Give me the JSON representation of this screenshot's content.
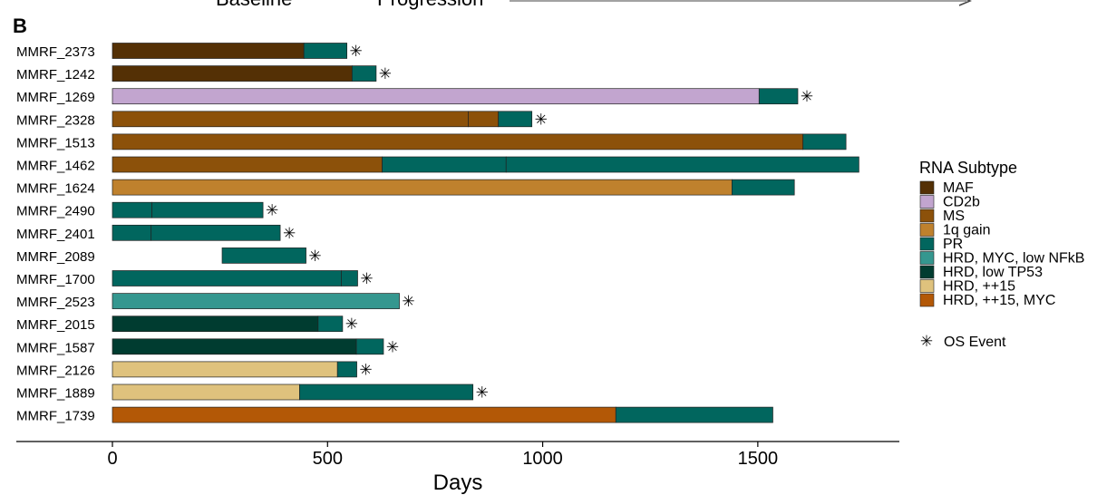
{
  "panel_label": "B",
  "top_labels": [
    "Baseline",
    "Progression"
  ],
  "chart_data": {
    "type": "bar",
    "orientation": "horizontal",
    "stacked": true,
    "xlabel": "Days",
    "ylabel": "",
    "xlim": [
      -220,
      1830
    ],
    "xticks": [
      0,
      500,
      1000,
      1500
    ],
    "grid": false,
    "legend": {
      "title": "RNA Subtype",
      "placement": "right",
      "entries": [
        {
          "name": "MAF",
          "color": "#543005"
        },
        {
          "name": "CD2b",
          "color": "#C2A5CF"
        },
        {
          "name": "MS",
          "color": "#8C510A"
        },
        {
          "name": "1q gain",
          "color": "#BF812D"
        },
        {
          "name": "PR",
          "color": "#01665E"
        },
        {
          "name": "HRD, MYC, low NFkB",
          "color": "#35978F"
        },
        {
          "name": "HRD, low TP53",
          "color": "#003C30"
        },
        {
          "name": "HRD, ++15",
          "color": "#DFC27D"
        },
        {
          "name": "HRD, ++15, MYC",
          "color": "#B35806"
        }
      ],
      "event_marker_label": "OS Event",
      "event_marker_symbol": "✳"
    },
    "patients": [
      {
        "id": "MMRF_2373",
        "os_event": true,
        "segments": [
          {
            "start": 0,
            "end": 445,
            "subtype": "MAF"
          },
          {
            "start": 445,
            "end": 545,
            "subtype": "PR"
          }
        ]
      },
      {
        "id": "MMRF_1242",
        "os_event": true,
        "segments": [
          {
            "start": 0,
            "end": 557,
            "subtype": "MAF"
          },
          {
            "start": 557,
            "end": 613,
            "subtype": "PR"
          }
        ]
      },
      {
        "id": "MMRF_1269",
        "os_event": true,
        "segments": [
          {
            "start": 0,
            "end": 1503,
            "subtype": "CD2b"
          },
          {
            "start": 1503,
            "end": 1593,
            "subtype": "PR"
          }
        ]
      },
      {
        "id": "MMRF_2328",
        "os_event": true,
        "segments": [
          {
            "start": 0,
            "end": 827,
            "subtype": "MS"
          },
          {
            "start": 827,
            "end": 897,
            "subtype": "MS"
          },
          {
            "start": 897,
            "end": 975,
            "subtype": "PR"
          }
        ]
      },
      {
        "id": "MMRF_1513",
        "os_event": false,
        "segments": [
          {
            "start": 0,
            "end": 1605,
            "subtype": "MS"
          },
          {
            "start": 1605,
            "end": 1705,
            "subtype": "PR"
          }
        ]
      },
      {
        "id": "MMRF_1462",
        "os_event": false,
        "segments": [
          {
            "start": 0,
            "end": 627,
            "subtype": "MS"
          },
          {
            "start": 627,
            "end": 915,
            "subtype": "PR"
          },
          {
            "start": 915,
            "end": 1735,
            "subtype": "PR"
          }
        ]
      },
      {
        "id": "MMRF_1624",
        "os_event": false,
        "segments": [
          {
            "start": 0,
            "end": 1440,
            "subtype": "1q gain"
          },
          {
            "start": 1440,
            "end": 1585,
            "subtype": "PR"
          }
        ]
      },
      {
        "id": "MMRF_2490",
        "os_event": true,
        "segments": [
          {
            "start": 0,
            "end": 92,
            "subtype": "PR"
          },
          {
            "start": 92,
            "end": 350,
            "subtype": "PR"
          }
        ]
      },
      {
        "id": "MMRF_2401",
        "os_event": true,
        "segments": [
          {
            "start": 0,
            "end": 90,
            "subtype": "PR"
          },
          {
            "start": 90,
            "end": 390,
            "subtype": "PR"
          }
        ]
      },
      {
        "id": "MMRF_2089",
        "os_event": true,
        "segments": [
          {
            "start": 255,
            "end": 450,
            "subtype": "PR"
          }
        ]
      },
      {
        "id": "MMRF_1700",
        "os_event": true,
        "segments": [
          {
            "start": 0,
            "end": 532,
            "subtype": "PR"
          },
          {
            "start": 532,
            "end": 570,
            "subtype": "PR"
          }
        ]
      },
      {
        "id": "MMRF_2523",
        "os_event": true,
        "segments": [
          {
            "start": 0,
            "end": 667,
            "subtype": "HRD, MYC, low NFkB"
          }
        ]
      },
      {
        "id": "MMRF_2015",
        "os_event": true,
        "segments": [
          {
            "start": 0,
            "end": 478,
            "subtype": "HRD, low TP53"
          },
          {
            "start": 478,
            "end": 535,
            "subtype": "PR"
          }
        ]
      },
      {
        "id": "MMRF_1587",
        "os_event": true,
        "segments": [
          {
            "start": 0,
            "end": 567,
            "subtype": "HRD, low TP53"
          },
          {
            "start": 567,
            "end": 630,
            "subtype": "PR"
          }
        ]
      },
      {
        "id": "MMRF_2126",
        "os_event": true,
        "segments": [
          {
            "start": 0,
            "end": 523,
            "subtype": "HRD, ++15"
          },
          {
            "start": 523,
            "end": 568,
            "subtype": "PR"
          }
        ]
      },
      {
        "id": "MMRF_1889",
        "os_event": true,
        "segments": [
          {
            "start": 0,
            "end": 435,
            "subtype": "HRD, ++15"
          },
          {
            "start": 435,
            "end": 838,
            "subtype": "PR"
          }
        ]
      },
      {
        "id": "MMRF_1739",
        "os_event": false,
        "segments": [
          {
            "start": 0,
            "end": 1170,
            "subtype": "HRD, ++15, MYC"
          },
          {
            "start": 1170,
            "end": 1535,
            "subtype": "PR"
          }
        ]
      }
    ]
  }
}
